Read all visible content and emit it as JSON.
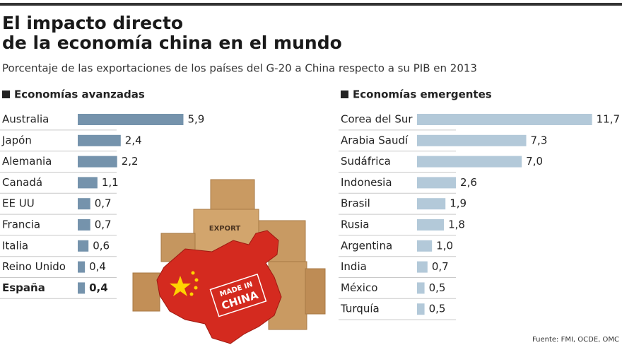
{
  "header": {
    "title": [
      "El impacto directo",
      "de la economía china en el mundo"
    ],
    "subtitle": "Porcentaje de las exportaciones de los países del G-20 a China respecto a su PIB en 2013"
  },
  "illustration": {
    "box_label": "EXPORT",
    "stamp": [
      "MADE IN",
      "CHINA"
    ]
  },
  "source": "Fuente: FMI, OCDE, OMC",
  "chart_data": [
    {
      "type": "bar",
      "orientation": "horizontal",
      "title": "Economías avanzadas",
      "categories": [
        "Australia",
        "Japón",
        "Alemania",
        "Canadá",
        "EE UU",
        "Francia",
        "Italia",
        "Reino Unido",
        "España"
      ],
      "values": [
        5.9,
        2.4,
        2.2,
        1.1,
        0.7,
        0.7,
        0.6,
        0.4,
        0.4
      ],
      "value_labels": [
        "5,9",
        "2,4",
        "2,2",
        "1,1",
        "0,7",
        "0,7",
        "0,6",
        "0,4",
        "0,4"
      ],
      "highlight": 8,
      "color": "#7593ac",
      "xlim": [
        0,
        6
      ]
    },
    {
      "type": "bar",
      "orientation": "horizontal",
      "title": "Economías emergentes",
      "categories": [
        "Corea del Sur",
        "Arabia Saudí",
        "Sudáfrica",
        "Indonesia",
        "Brasil",
        "Rusia",
        "Argentina",
        "India",
        "México",
        "Turquía"
      ],
      "values": [
        11.7,
        7.3,
        7.0,
        2.6,
        1.9,
        1.8,
        1.0,
        0.7,
        0.5,
        0.5
      ],
      "value_labels": [
        "11,7",
        "7,3",
        "7,0",
        "2,6",
        "1,9",
        "1,8",
        "1,0",
        "0,7",
        "0,5",
        "0,5"
      ],
      "color": "#b3c9d9",
      "xlim": [
        0,
        12
      ]
    }
  ]
}
